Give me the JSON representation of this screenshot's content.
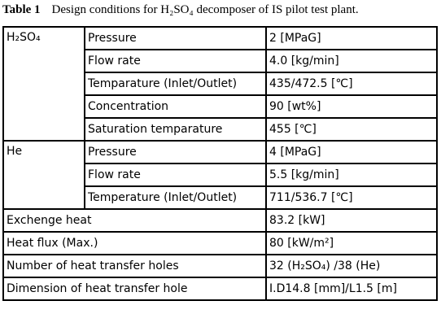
{
  "title": {
    "label": "Table 1",
    "caption": "Design conditions for H₂SO₄ decomposer of IS pilot test plant."
  },
  "table": {
    "groups": [
      {
        "name": "H₂SO₄",
        "items": [
          [
            "Pressure",
            "2 [MPaG]"
          ],
          [
            "Flow rate",
            "4.0 [kg/min]"
          ],
          [
            "Temparature (Inlet/Outlet)",
            "435/472.5 [℃]"
          ],
          [
            "Concentration",
            "90 [wt%]"
          ],
          [
            "Saturation temparature",
            "455 [℃]"
          ]
        ]
      },
      {
        "name": "He",
        "items": [
          [
            "Pressure",
            "4 [MPaG]"
          ],
          [
            "Flow rate",
            "5.5 [kg/min]"
          ],
          [
            "Temperature (Inlet/Outlet)",
            "711/536.7 [℃]"
          ]
        ]
      }
    ],
    "rows": [
      [
        "Exchenge heat",
        "83.2 [kW]"
      ],
      [
        "Heat flux (Max.)",
        "80 [kW/m²]"
      ],
      [
        "Number of heat transfer holes",
        "32 (H₂SO₄) /38 (He)"
      ],
      [
        "Dimension of heat transfer hole",
        "I.D14.8 [mm]/L1.5 [m]"
      ]
    ]
  }
}
